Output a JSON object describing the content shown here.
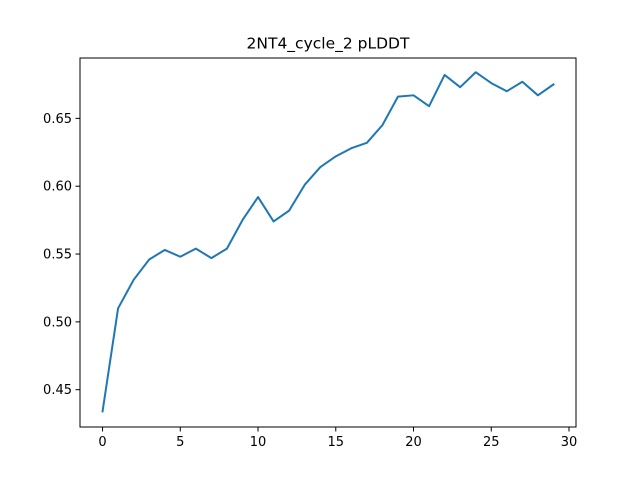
{
  "chart_data": {
    "type": "line",
    "title": "2NT4_cycle_2 pLDDT",
    "xlabel": "",
    "ylabel": "",
    "xlim": [
      -1.45,
      30.45
    ],
    "ylim": [
      0.4225,
      0.6945
    ],
    "xticks": [
      0,
      5,
      10,
      15,
      20,
      25,
      30
    ],
    "xtick_labels": [
      "0",
      "5",
      "10",
      "15",
      "20",
      "25",
      "30"
    ],
    "yticks": [
      0.45,
      0.5,
      0.55,
      0.6,
      0.65
    ],
    "ytick_labels": [
      "0.45",
      "0.50",
      "0.55",
      "0.60",
      "0.65"
    ],
    "grid": false,
    "legend": false,
    "series": [
      {
        "color": "#1f77b4",
        "x": [
          0,
          1,
          2,
          3,
          4,
          5,
          6,
          7,
          8,
          9,
          10,
          11,
          12,
          13,
          14,
          15,
          16,
          17,
          18,
          19,
          20,
          21,
          22,
          23,
          24,
          25,
          26,
          27,
          28,
          29
        ],
        "values": [
          0.434,
          0.51,
          0.531,
          0.546,
          0.553,
          0.548,
          0.554,
          0.547,
          0.554,
          0.575,
          0.592,
          0.574,
          0.582,
          0.601,
          0.614,
          0.622,
          0.628,
          0.632,
          0.645,
          0.666,
          0.667,
          0.659,
          0.682,
          0.673,
          0.684,
          0.676,
          0.67,
          0.677,
          0.667,
          0.675
        ]
      }
    ]
  }
}
